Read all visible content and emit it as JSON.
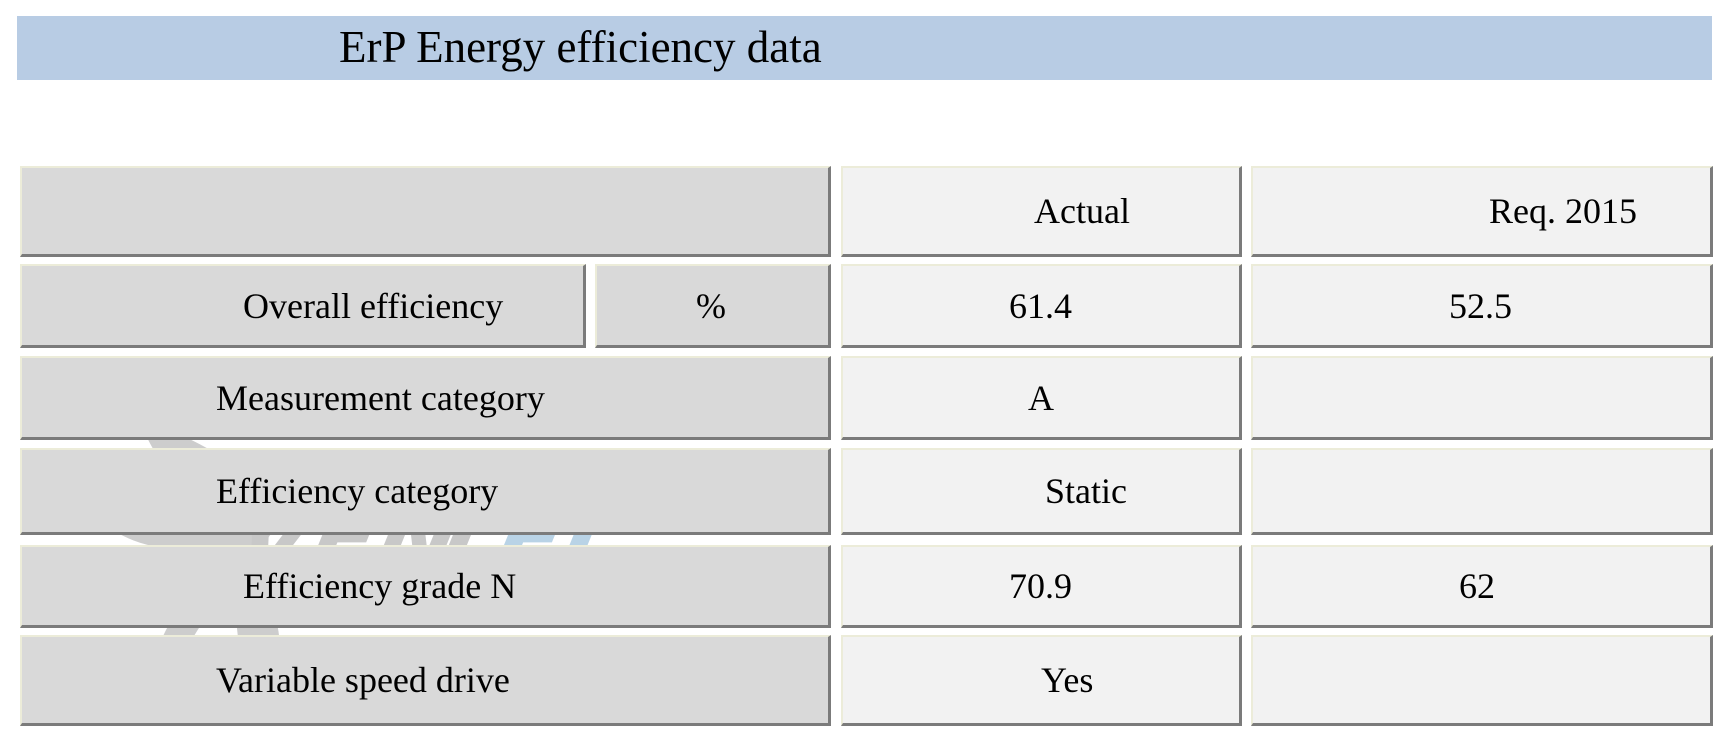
{
  "header": {
    "title": "ErP Energy efficiency data"
  },
  "table": {
    "header_row": {
      "blank": "",
      "actual_label": "Actual",
      "required_label": "Req. 2015"
    },
    "rows": [
      {
        "label": "Overall efficiency",
        "unit": "%",
        "actual": "61.4",
        "required": "52.5"
      },
      {
        "label": "Measurement category",
        "actual": "A",
        "required": ""
      },
      {
        "label": "Efficiency category",
        "actual": "Static",
        "required": ""
      },
      {
        "label": "Efficiency grade N",
        "actual": "70.9",
        "required": "62"
      },
      {
        "label": "Variable speed drive",
        "actual": "Yes",
        "required": ""
      }
    ]
  },
  "watermark": {
    "text": "VENTEL",
    "icon": "fan-logo-icon",
    "colors": {
      "gray": "#c8c8c8",
      "blue": "#b9d3e6"
    }
  },
  "colors": {
    "title_bar": "#b8cce4",
    "label_cell": "#d9d9d9",
    "value_cell": "#f2f2f2"
  }
}
